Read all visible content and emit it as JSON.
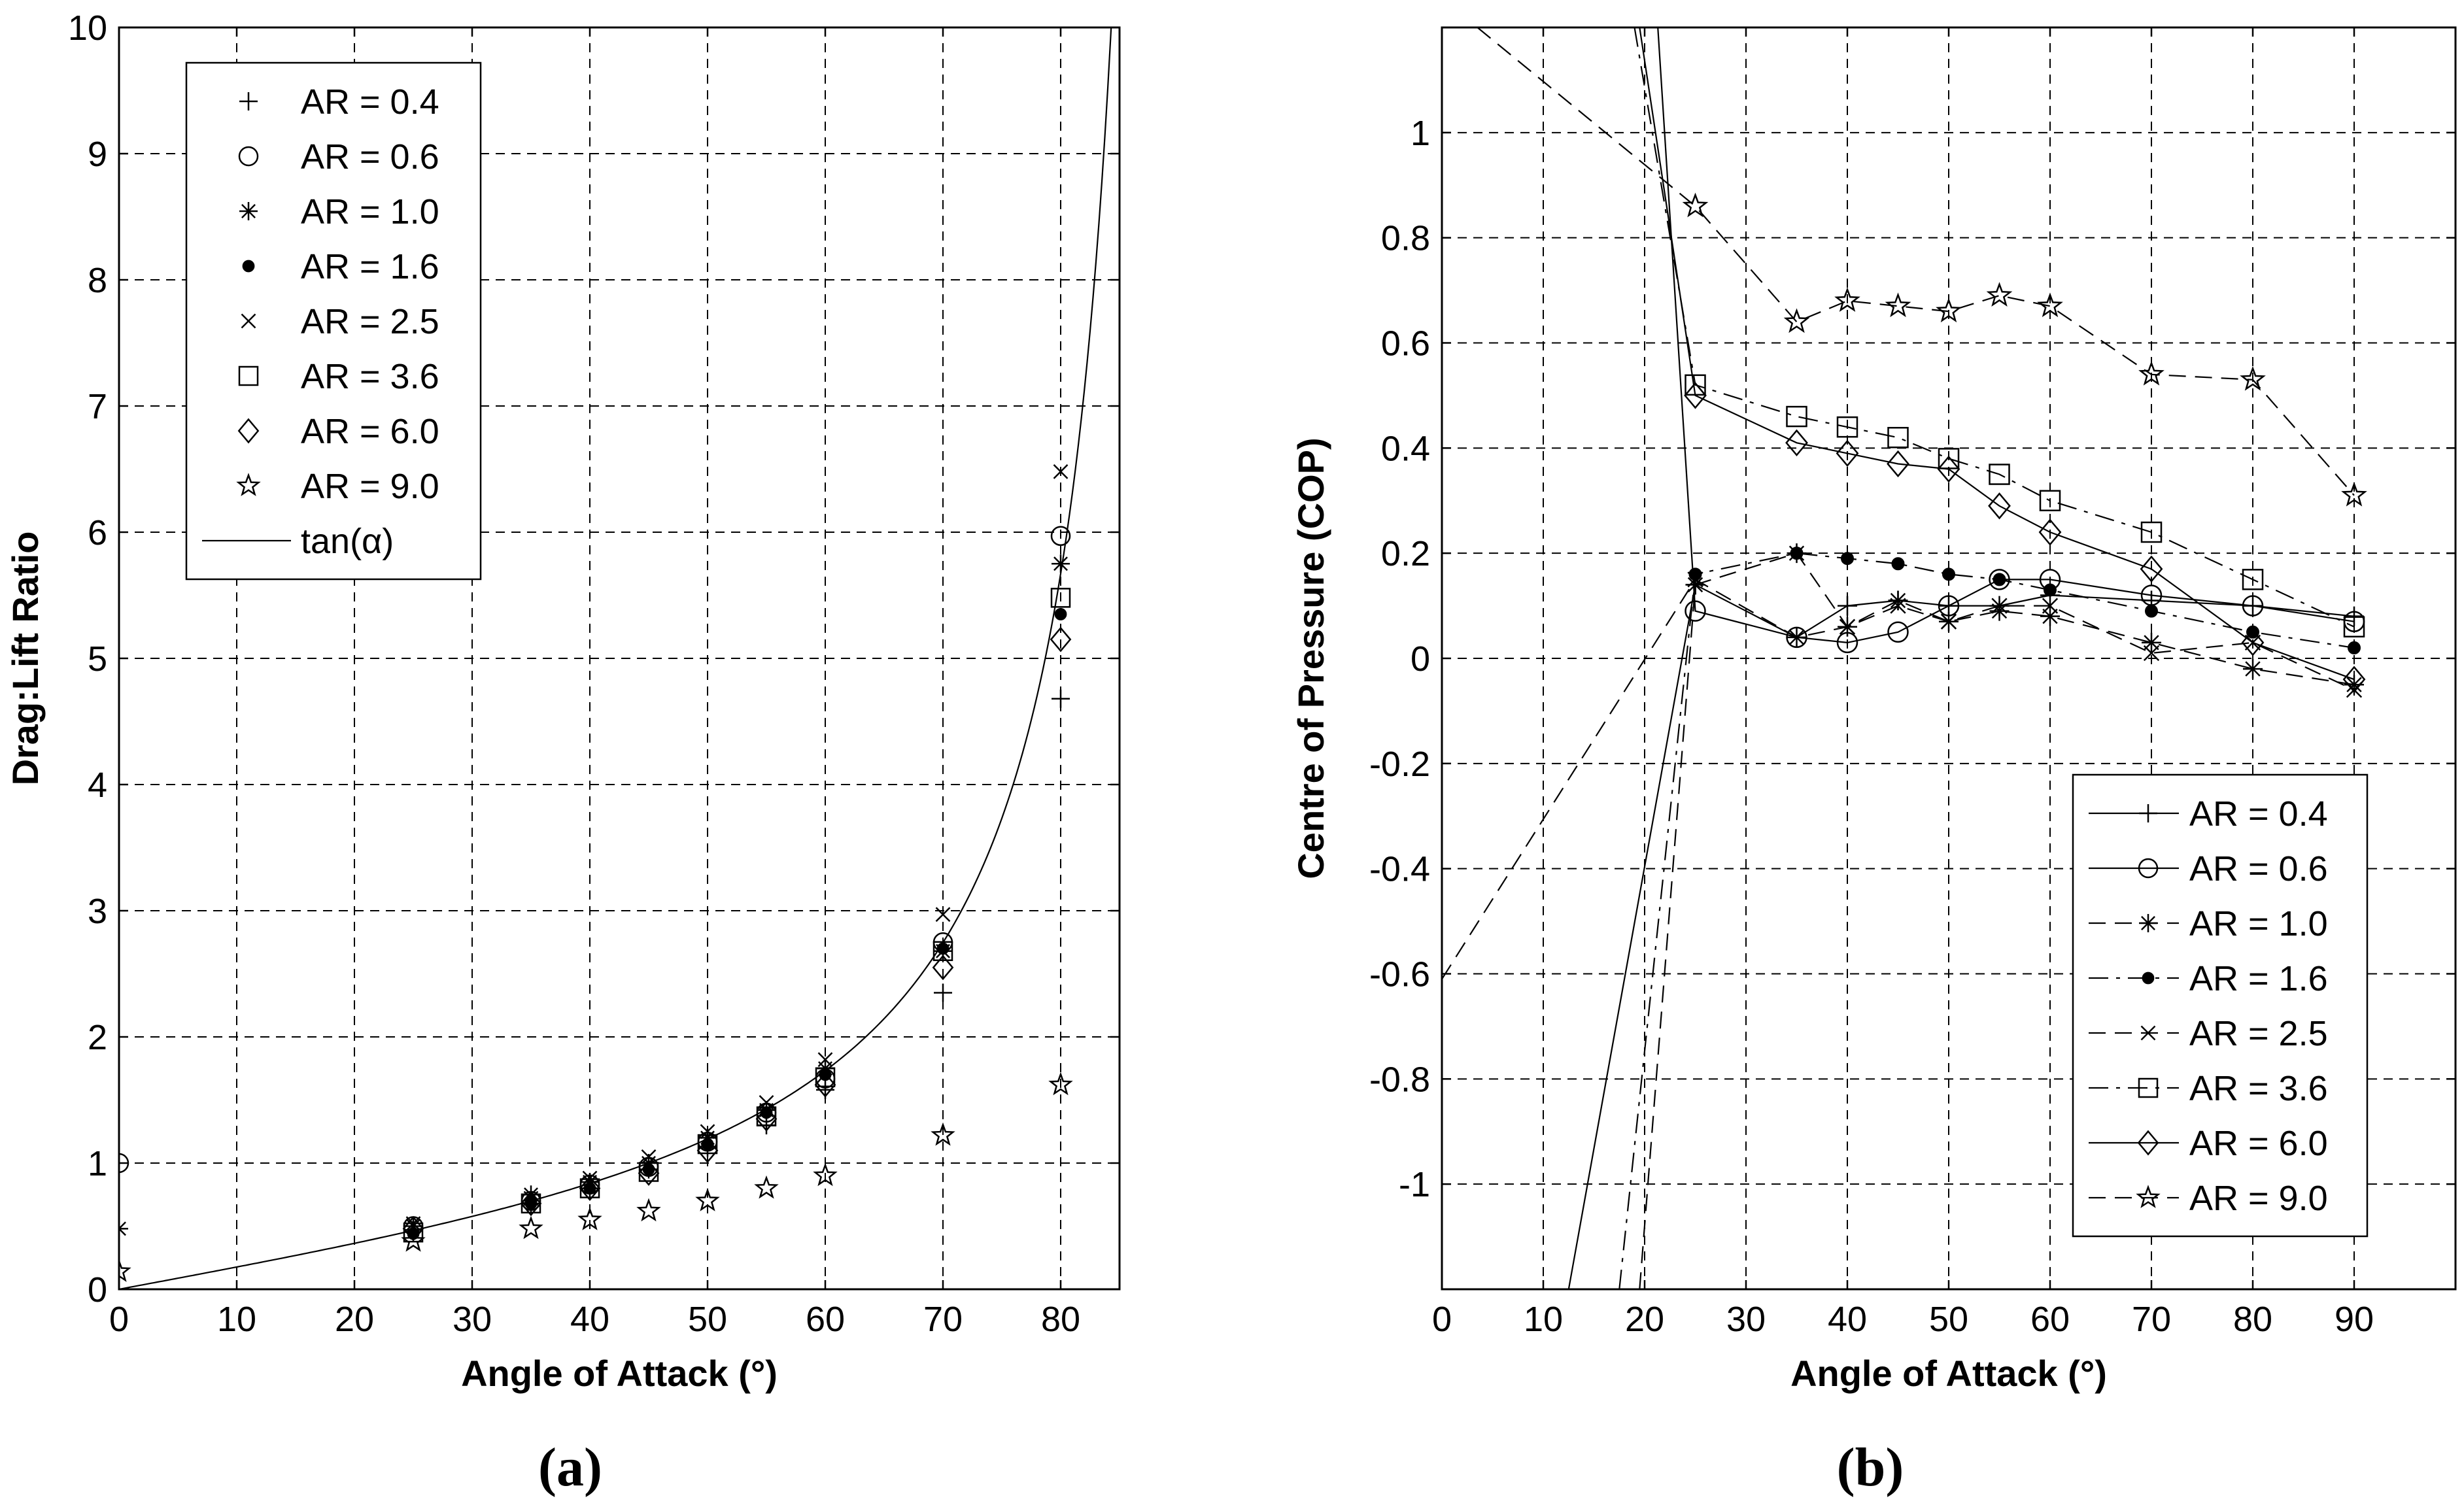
{
  "chart_data": [
    {
      "id": "a",
      "type": "scatter",
      "caption_letter": "a",
      "xlabel": "Angle of Attack (°)",
      "ylabel": "Drag:Lift Ratio",
      "xlim": [
        0,
        85
      ],
      "ylim": [
        0,
        10
      ],
      "xticks": [
        0,
        10,
        20,
        30,
        40,
        50,
        60,
        70,
        80
      ],
      "yticks": [
        0,
        1,
        2,
        3,
        4,
        5,
        6,
        7,
        8,
        9,
        10
      ],
      "legend_position": "top-left",
      "series": [
        {
          "name": "AR = 0.4",
          "marker": "plus",
          "x": [
            25,
            35,
            40,
            45,
            50,
            55,
            60,
            70,
            80
          ],
          "y": [
            0.47,
            0.68,
            0.8,
            0.95,
            1.12,
            1.3,
            1.58,
            2.35,
            4.68
          ]
        },
        {
          "name": "AR = 0.6",
          "marker": "circle",
          "x": [
            0,
            25,
            35,
            40,
            45,
            50,
            55,
            60,
            70,
            80
          ],
          "y": [
            1.0,
            0.5,
            0.7,
            0.83,
            0.97,
            1.17,
            1.4,
            1.67,
            2.75,
            5.97
          ]
        },
        {
          "name": "AR = 1.0",
          "marker": "asterisk",
          "x": [
            0,
            25,
            35,
            40,
            45,
            50,
            55,
            60,
            70,
            80
          ],
          "y": [
            0.48,
            0.5,
            0.75,
            0.85,
            1.0,
            1.2,
            1.42,
            1.75,
            2.68,
            5.75
          ]
        },
        {
          "name": "AR = 1.6",
          "marker": "dot",
          "x": [
            25,
            35,
            40,
            45,
            50,
            55,
            60,
            70,
            80
          ],
          "y": [
            0.44,
            0.68,
            0.8,
            0.95,
            1.15,
            1.4,
            1.7,
            2.7,
            5.35
          ]
        },
        {
          "name": "AR = 2.5",
          "marker": "x",
          "x": [
            25,
            35,
            40,
            45,
            50,
            55,
            60,
            70,
            80
          ],
          "y": [
            0.52,
            0.72,
            0.88,
            1.05,
            1.25,
            1.48,
            1.82,
            2.97,
            6.48
          ]
        },
        {
          "name": "AR = 3.6",
          "marker": "square",
          "x": [
            25,
            35,
            40,
            45,
            50,
            55,
            60,
            70,
            80
          ],
          "y": [
            0.45,
            0.68,
            0.8,
            0.93,
            1.15,
            1.37,
            1.68,
            2.68,
            5.48
          ]
        },
        {
          "name": "AR = 6.0",
          "marker": "diamond",
          "x": [
            25,
            35,
            40,
            45,
            50,
            55,
            60,
            70,
            80
          ],
          "y": [
            0.48,
            0.68,
            0.8,
            0.92,
            1.1,
            1.35,
            1.62,
            2.55,
            5.15
          ]
        },
        {
          "name": "AR = 9.0",
          "marker": "star",
          "x": [
            0,
            25,
            35,
            40,
            45,
            50,
            55,
            60,
            70,
            80
          ],
          "y": [
            0.14,
            0.38,
            0.48,
            0.55,
            0.62,
            0.7,
            0.8,
            0.9,
            1.22,
            1.62
          ]
        },
        {
          "name": "tan(α)",
          "marker": "line",
          "function": "tan",
          "x_range": [
            0,
            84.9
          ]
        }
      ]
    },
    {
      "id": "b",
      "type": "line",
      "caption_letter": "b",
      "xlabel": "Angle of Attack (°)",
      "ylabel": "Centre of Pressure (COP)",
      "xlim": [
        0,
        100
      ],
      "ylim": [
        -1.2,
        1.2
      ],
      "xticks": [
        0,
        10,
        20,
        30,
        40,
        50,
        60,
        70,
        80,
        90
      ],
      "yticks": [
        -1,
        -0.8,
        -0.6,
        -0.4,
        -0.2,
        0,
        0.2,
        0.4,
        0.6,
        0.8,
        1
      ],
      "ytick_labels": [
        "-1",
        "-0.8",
        "-0.6",
        "-0.4",
        "-0.2",
        "0",
        "0.2",
        "0.4",
        "0.6",
        "0.8",
        "1"
      ],
      "legend_position": "bottom-right",
      "series": [
        {
          "name": "AR = 0.4",
          "marker": "plus",
          "dash": "solid",
          "x": [
            12.5,
            25,
            35,
            40,
            45,
            50,
            55,
            60,
            70,
            80,
            90
          ],
          "y": [
            -1.2,
            0.14,
            0.04,
            0.1,
            0.11,
            0.1,
            0.1,
            0.12,
            0.11,
            0.1,
            0.08
          ]
        },
        {
          "name": "AR = 0.6",
          "marker": "circle",
          "dash": "solid",
          "x": [
            21.3,
            25,
            35,
            40,
            45,
            50,
            55,
            60,
            70,
            80,
            90
          ],
          "y": [
            1.2,
            0.09,
            0.04,
            0.03,
            0.05,
            0.1,
            0.15,
            0.15,
            0.12,
            0.1,
            0.07
          ]
        },
        {
          "name": "AR = 1.0",
          "marker": "asterisk",
          "dash": "dashed",
          "x": [
            19.5,
            25,
            35,
            40,
            45,
            50,
            55,
            60,
            70,
            80,
            90
          ],
          "y": [
            -1.2,
            0.14,
            0.2,
            0.06,
            0.11,
            0.07,
            0.09,
            0.08,
            0.03,
            -0.02,
            -0.05
          ]
        },
        {
          "name": "AR = 1.6",
          "marker": "dot",
          "dash": "dashdot",
          "x": [
            17.5,
            25,
            35,
            40,
            45,
            50,
            55,
            60,
            70,
            80,
            90
          ],
          "y": [
            -1.2,
            0.16,
            0.2,
            0.19,
            0.18,
            0.16,
            0.15,
            0.13,
            0.09,
            0.05,
            0.02
          ]
        },
        {
          "name": "AR = 2.5",
          "marker": "x",
          "dash": "dashed",
          "x": [
            0,
            25,
            35,
            40,
            45,
            50,
            55,
            60,
            70,
            80,
            90
          ],
          "y": [
            -0.61,
            0.15,
            0.04,
            0.06,
            0.1,
            0.07,
            0.1,
            0.1,
            0.01,
            0.03,
            -0.06
          ]
        },
        {
          "name": "AR = 3.6",
          "marker": "square",
          "dash": "dashdot",
          "x": [
            19.0,
            25,
            35,
            40,
            45,
            50,
            55,
            60,
            70,
            80,
            90
          ],
          "y": [
            1.2,
            0.52,
            0.46,
            0.44,
            0.42,
            0.38,
            0.35,
            0.3,
            0.24,
            0.15,
            0.06
          ]
        },
        {
          "name": "AR = 6.0",
          "marker": "diamond",
          "dash": "solid",
          "x": [
            19.5,
            25,
            35,
            40,
            45,
            50,
            55,
            60,
            70,
            80,
            90
          ],
          "y": [
            1.2,
            0.5,
            0.41,
            0.39,
            0.37,
            0.36,
            0.29,
            0.24,
            0.17,
            0.03,
            -0.04
          ]
        },
        {
          "name": "AR = 9.0",
          "marker": "star",
          "dash": "dashed",
          "x": [
            3.5,
            25,
            35,
            40,
            45,
            50,
            55,
            60,
            70,
            80,
            90
          ],
          "y": [
            1.2,
            0.86,
            0.64,
            0.68,
            0.67,
            0.66,
            0.69,
            0.67,
            0.54,
            0.53,
            0.31
          ]
        }
      ]
    }
  ]
}
